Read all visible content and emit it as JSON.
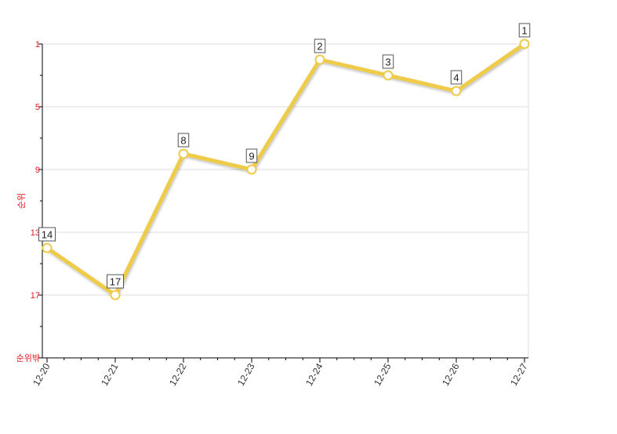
{
  "chart_data": {
    "type": "line",
    "categories": [
      "12-20",
      "12-21",
      "12-22",
      "12-23",
      "12-24",
      "12-25",
      "12-26",
      "12-27"
    ],
    "series": [
      {
        "values": [
          14,
          17,
          8,
          9,
          2,
          3,
          4,
          1
        ]
      }
    ],
    "ylabel": "순위",
    "y_ticks": [
      "1",
      "5",
      "9",
      "13",
      "17",
      "순위밖"
    ],
    "y_tick_values": [
      1,
      5,
      9,
      13,
      17,
      21
    ],
    "ylim": [
      1,
      21
    ],
    "y_reversed": true,
    "grid": true,
    "colors": {
      "line": "#eecb4a",
      "marker_fill": "#ffffff",
      "tick_text": "#e8161d",
      "grid": "#dddddd"
    }
  }
}
